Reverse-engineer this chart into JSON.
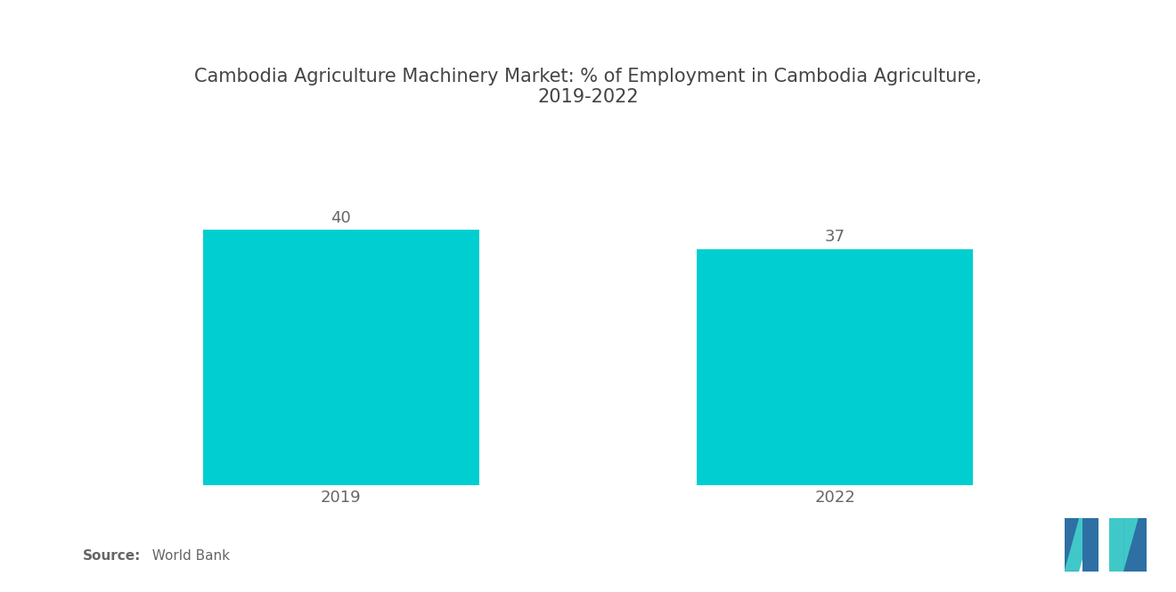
{
  "title": "Cambodia Agriculture Machinery Market: % of Employment in Cambodia Agriculture,\n2019-2022",
  "categories": [
    "2019",
    "2022"
  ],
  "values": [
    40,
    37
  ],
  "bar_color": "#00CED1",
  "background_color": "#ffffff",
  "title_fontsize": 15,
  "label_fontsize": 13,
  "value_fontsize": 13,
  "source_bold": "Source:",
  "source_rest": "  World Bank",
  "ylim": [
    0,
    50
  ],
  "bar_width": 0.28,
  "x_positions": [
    0.25,
    0.75
  ],
  "xlim": [
    0,
    1.0
  ],
  "logo_blue": "#2E6FA4",
  "logo_teal": "#40C8C8"
}
